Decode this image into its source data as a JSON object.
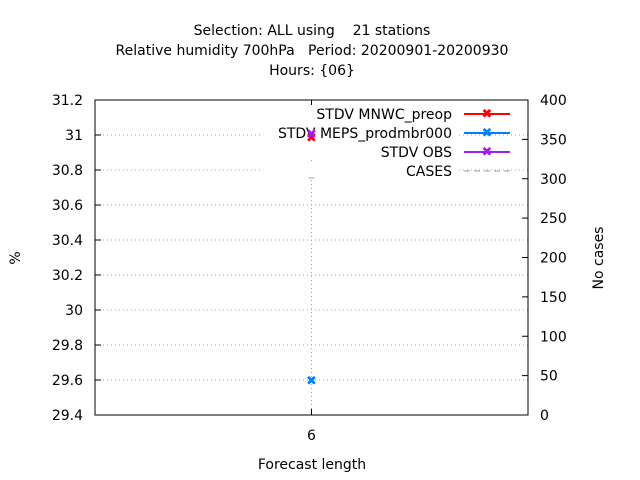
{
  "chart_data": {
    "type": "scatter",
    "title_lines": [
      "Selection: ALL using    21 stations",
      "Relative humidity 700hPa   Period: 20200901-20200930",
      "Hours: {06}"
    ],
    "xlabel": "Forecast length",
    "ylabel": "%",
    "y2label": "No cases",
    "x_ticks": [
      "6"
    ],
    "x": [
      6
    ],
    "xlim": [
      5,
      7
    ],
    "ylim": [
      29.4,
      31.2
    ],
    "y_ticks": [
      "29.4",
      "29.6",
      "29.8",
      "30",
      "30.2",
      "30.4",
      "30.6",
      "30.8",
      "31",
      "31.2"
    ],
    "y2lim": [
      0,
      400
    ],
    "y2_ticks": [
      "0",
      "50",
      "100",
      "150",
      "200",
      "250",
      "300",
      "350",
      "400"
    ],
    "grid": true,
    "legend_position": "top-right",
    "series": [
      {
        "name": "STDV MNWC_preop",
        "color": "#ff0000",
        "axis": "y",
        "values": [
          30.99
        ]
      },
      {
        "name": "STDV MEPS_prodmbr000",
        "color": "#0080ff",
        "axis": "y",
        "values": [
          29.6
        ]
      },
      {
        "name": "STDV OBS",
        "color": "#a020f0",
        "axis": "y",
        "values": [
          31.01
        ]
      },
      {
        "name": "CASES",
        "color": "#a0a0a0",
        "axis": "y2",
        "dashed": true,
        "values": [
          301
        ]
      }
    ]
  }
}
